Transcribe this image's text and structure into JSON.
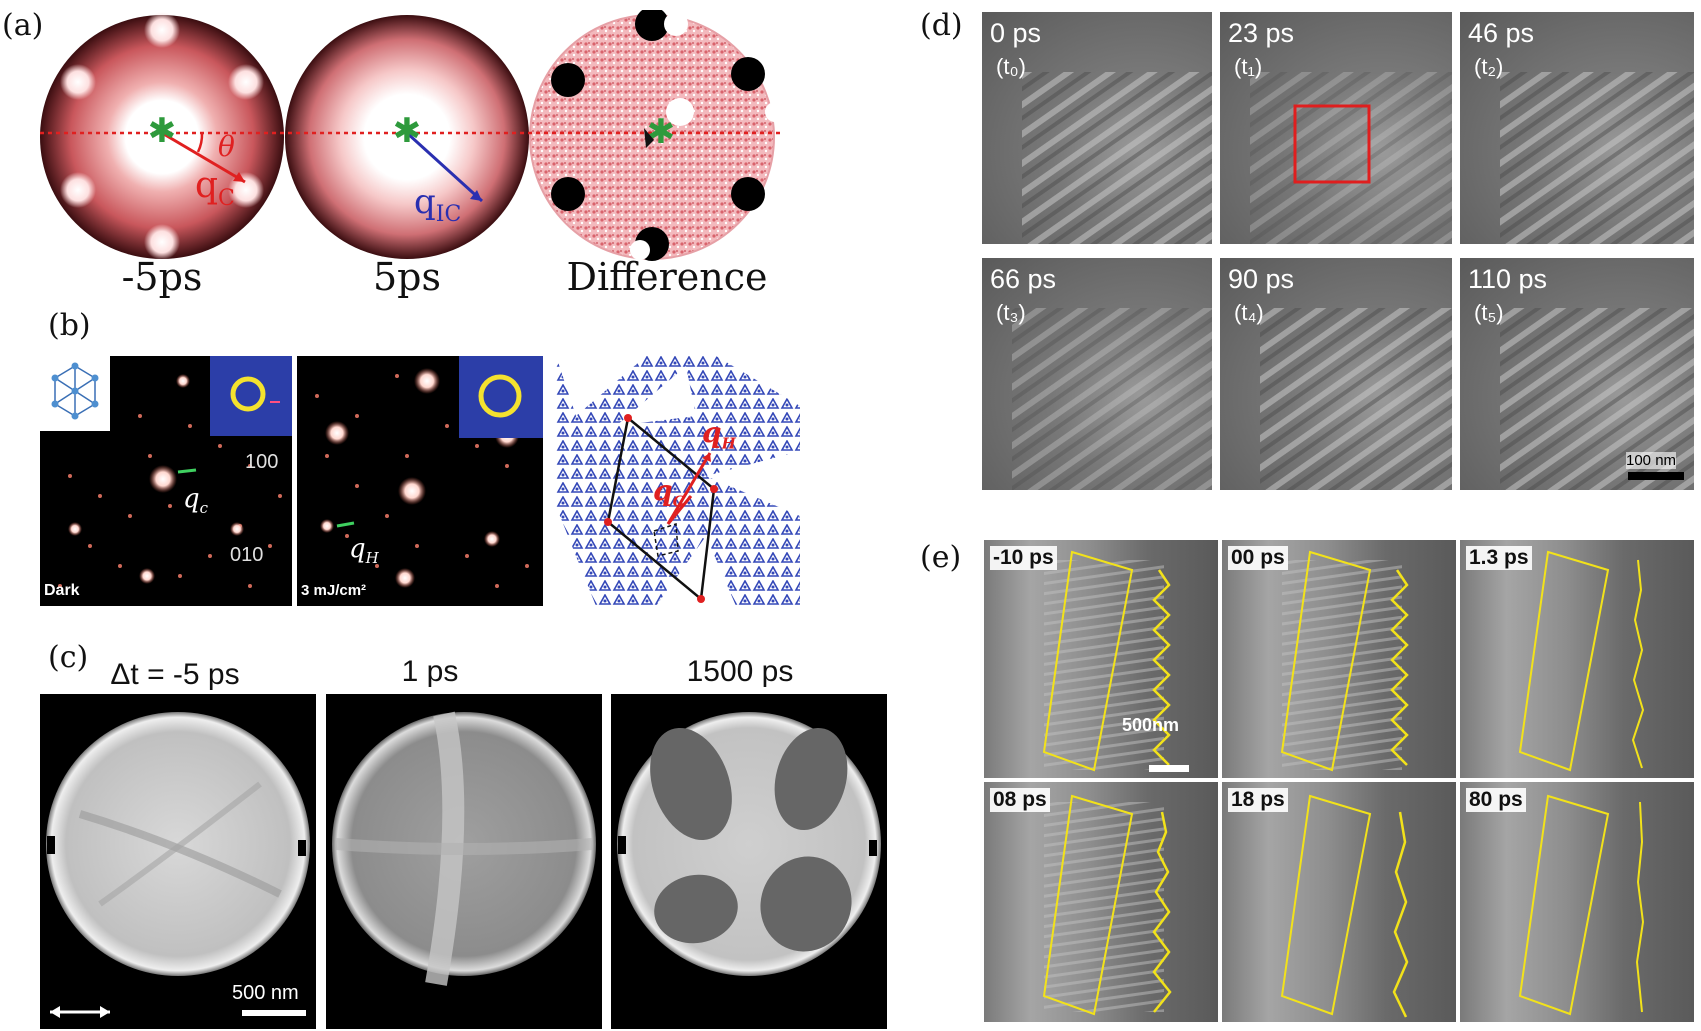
{
  "panel_labels": {
    "a": "(a)",
    "b": "(b)",
    "c": "(c)",
    "d": "(d)",
    "e": "(e)"
  },
  "panel_a": {
    "captions": [
      "-5ps",
      "5ps",
      "Difference"
    ],
    "theta": "θ",
    "qc": "q",
    "qc_sub": "C",
    "qic": "q",
    "qic_sub": "IC",
    "colors": {
      "red_marker": "#e02020",
      "blue_vector": "#2a2fb0",
      "green_star": "#2e9a3c"
    }
  },
  "panel_b": {
    "labels": {
      "index_100": "100",
      "index_010": "010",
      "dark": "Dark",
      "fluence": "3 mJ/cm²"
    },
    "qc": "q",
    "qc_sub": "c",
    "qh": "q",
    "qh_sub": "H",
    "lattice_qh": "q",
    "lattice_qh_sub": "H",
    "lattice_qc": "q",
    "lattice_qc_sub": "C"
  },
  "panel_c": {
    "captions": [
      "Δt = -5 ps",
      "1 ps",
      "1500 ps"
    ],
    "scale_bar": "500 nm"
  },
  "panel_d": {
    "frames": [
      {
        "time": "0 ps",
        "sub": "(t₀)"
      },
      {
        "time": "23 ps",
        "sub": "(t₁)"
      },
      {
        "time": "46 ps",
        "sub": "(t₂)"
      },
      {
        "time": "66 ps",
        "sub": "(t₃)"
      },
      {
        "time": "90 ps",
        "sub": "(t₄)"
      },
      {
        "time": "110 ps",
        "sub": "(t₅)"
      }
    ],
    "scale_bar": "100 nm"
  },
  "panel_e": {
    "frames": [
      "-10 ps",
      "00 ps",
      "1.3 ps",
      "08 ps",
      "18 ps",
      "80 ps"
    ],
    "scale_bar": "500nm",
    "colors": {
      "overlay": "#f2e21a"
    }
  }
}
